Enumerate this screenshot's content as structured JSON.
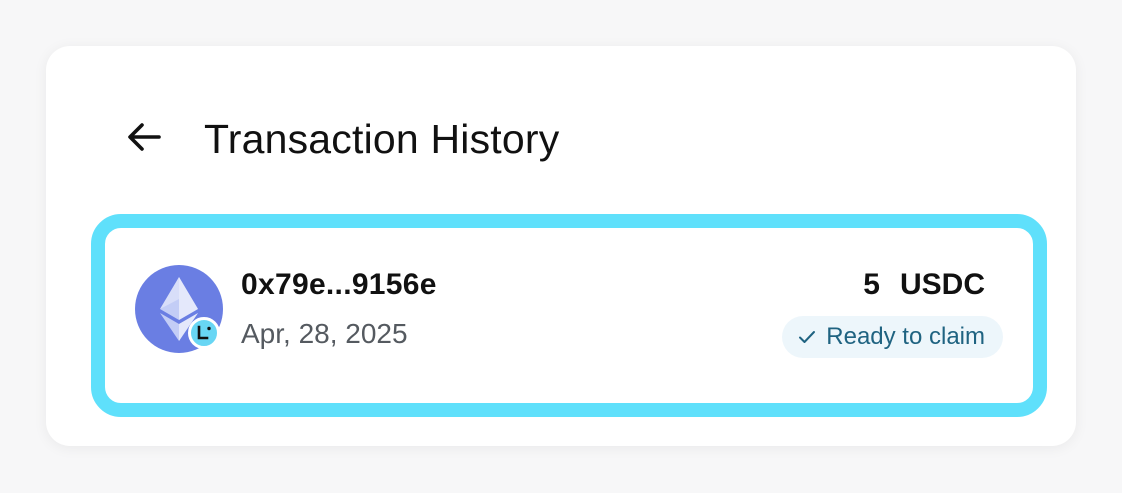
{
  "header": {
    "title": "Transaction History",
    "back_icon": "arrow-left-icon"
  },
  "transactions": [
    {
      "address": "0x79e...9156e",
      "date": "Apr, 28, 2025",
      "amount": "5",
      "token": "USDC",
      "status": "Ready to claim",
      "status_icon": "check-icon",
      "asset_icon": "ethereum-icon",
      "network_icon": "linea-icon"
    }
  ],
  "colors": {
    "highlight_border": "#5fe0fb",
    "ethereum_purple": "#6a7ee3",
    "network_badge": "#68d6f4",
    "status_bg": "#edf6fb",
    "status_text": "#1f6381"
  }
}
